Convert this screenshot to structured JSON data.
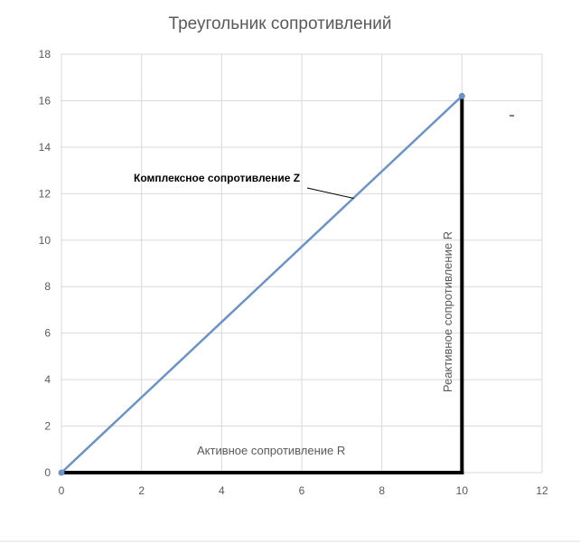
{
  "chart_data": {
    "type": "scatter",
    "title": "Треугольник сопротивлений",
    "xlabel": "",
    "ylabel": "",
    "xlim": [
      0,
      12
    ],
    "ylim": [
      0,
      18
    ],
    "x_ticks": [
      0,
      2,
      4,
      6,
      8,
      10,
      12
    ],
    "y_ticks": [
      0,
      2,
      4,
      6,
      8,
      10,
      12,
      14,
      16,
      18
    ],
    "grid": true,
    "legend": "none",
    "series": [
      {
        "x": [
          0,
          10
        ],
        "y": [
          0,
          16.2
        ],
        "color": "#6b93c8",
        "markers": true
      }
    ],
    "sides": [
      {
        "label": "Активное сопротивление R",
        "from": [
          0,
          0
        ],
        "to": [
          10,
          0
        ],
        "color": "#000000"
      },
      {
        "label": "Реактивное сопротивление R",
        "from": [
          10,
          0
        ],
        "to": [
          10,
          16.2
        ],
        "color": "#000000"
      }
    ],
    "annotations": [
      {
        "text": "Комплексное сопротивление Z",
        "target": [
          7.3,
          11.8
        ]
      }
    ]
  }
}
